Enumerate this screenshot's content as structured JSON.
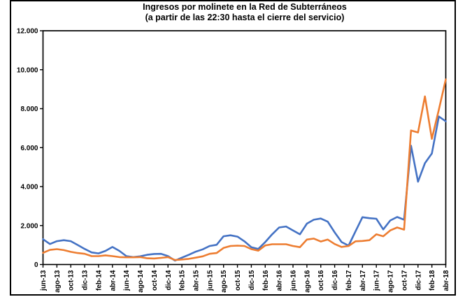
{
  "window": {
    "background": "#ffffff",
    "border_color": "#000000"
  },
  "chart_data": {
    "type": "line",
    "title": "Ingresos por molinete en la Red de Subterráneos",
    "subtitle": "(a partir de las 22:30 hasta el cierre del servicio)",
    "categories": [
      "jun-13",
      "jul-13",
      "ago-13",
      "sep-13",
      "oct-13",
      "nov-13",
      "dic-13",
      "ene-14",
      "feb-14",
      "mar-14",
      "abr-14",
      "may-14",
      "jun-14",
      "jul-14",
      "ago-14",
      "sep-14",
      "oct-14",
      "nov-14",
      "dic-14",
      "ene-15",
      "feb-15",
      "mar-15",
      "abr-15",
      "may-15",
      "jun-15",
      "jul-15",
      "ago-15",
      "sep-15",
      "oct-15",
      "nov-15",
      "dic-15",
      "ene-16",
      "feb-16",
      "mar-16",
      "abr-16",
      "may-16",
      "jun-16",
      "jul-16",
      "ago-16",
      "sep-16",
      "oct-16",
      "nov-16",
      "dic-16",
      "ene-17",
      "feb-17",
      "mar-17",
      "abr-17",
      "may-17",
      "jun-17",
      "jul-17",
      "ago-17",
      "sep-17",
      "oct-17",
      "nov-17",
      "dic-17",
      "ene-18",
      "feb-18",
      "mar-18",
      "abr-18"
    ],
    "x_label_every": 2,
    "series": [
      {
        "name": "serie-azul",
        "color": "#4472C4",
        "values": [
          1300,
          1050,
          1200,
          1250,
          1200,
          1000,
          800,
          620,
          570,
          700,
          900,
          700,
          430,
          380,
          420,
          500,
          540,
          550,
          430,
          200,
          350,
          500,
          660,
          780,
          950,
          1010,
          1450,
          1500,
          1430,
          1190,
          890,
          800,
          1150,
          1550,
          1900,
          1950,
          1750,
          1550,
          2100,
          2300,
          2360,
          2200,
          1650,
          1150,
          970,
          1700,
          2430,
          2380,
          2350,
          1800,
          2260,
          2440,
          2300,
          6100,
          4250,
          5200,
          5700,
          7600,
          7350
        ]
      },
      {
        "name": "serie-naranja",
        "color": "#ED7D31",
        "values": [
          600,
          750,
          790,
          740,
          650,
          590,
          550,
          430,
          430,
          470,
          430,
          380,
          370,
          370,
          380,
          320,
          310,
          340,
          380,
          230,
          260,
          290,
          350,
          420,
          550,
          590,
          850,
          950,
          970,
          950,
          790,
          710,
          980,
          1040,
          1040,
          1040,
          950,
          890,
          1280,
          1330,
          1180,
          1280,
          1050,
          900,
          950,
          1190,
          1210,
          1250,
          1550,
          1450,
          1750,
          1900,
          1790,
          6880,
          6780,
          8630,
          6450,
          7950,
          9500
        ]
      }
    ],
    "ylim": [
      0,
      12000
    ],
    "y_ticks": [
      0,
      2000,
      4000,
      6000,
      8000,
      10000,
      12000
    ],
    "y_tick_labels": [
      "0",
      "2.000",
      "4.000",
      "6.000",
      "8.000",
      "10.000",
      "12.000"
    ],
    "grid": false,
    "legend_position": "none",
    "axis_color": "#000000"
  }
}
